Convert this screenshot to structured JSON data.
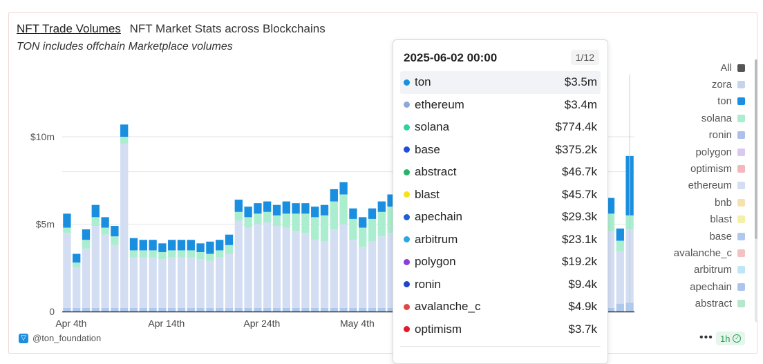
{
  "header": {
    "title": "NFT Trade Volumes",
    "subtitle": "NFT Market Stats across Blockchains",
    "note": "TON includes offchain Marketplace volumes"
  },
  "chart_data": {
    "type": "bar",
    "stacked": true,
    "grid": true,
    "ylim": [
      0,
      10000000
    ],
    "yticks": [
      {
        "value": 0,
        "label": "0"
      },
      {
        "value": 5000000,
        "label": "$5m"
      },
      {
        "value": 10000000,
        "label": "$10m"
      }
    ],
    "xticks": [
      {
        "index": 0,
        "label": "Apr 4th"
      },
      {
        "index": 10,
        "label": "Apr 14th"
      },
      {
        "index": 20,
        "label": "Apr 24th"
      },
      {
        "index": 30,
        "label": "May 4th"
      }
    ],
    "n_bars": 60,
    "series": [
      {
        "name": "base",
        "color": "#aec8ee",
        "values": [
          0.2,
          0.2,
          0.2,
          0.2,
          0.2,
          0.2,
          0.2,
          0.2,
          0.2,
          0.2,
          0.2,
          0.2,
          0.2,
          0.2,
          0.2,
          0.2,
          0.2,
          0.2,
          0.2,
          0.2,
          0.2,
          0.2,
          0.2,
          0.2,
          0.2,
          0.2,
          0.2,
          0.2,
          0.2,
          0.2,
          0.2,
          0.2,
          0.2,
          0.2,
          0.2,
          0.2,
          0.2,
          0.2,
          0.2,
          0.2,
          0.2,
          0.2,
          0.2,
          0.2,
          0.2,
          0.2,
          0.2,
          0.2,
          0.2,
          0.2,
          0.2,
          0.2,
          0.2,
          0.2,
          0.2,
          0.2,
          0.2,
          0.2,
          0.45,
          0.5
        ]
      },
      {
        "name": "ethereum",
        "color": "#d4def3",
        "values": [
          4.3,
          2.3,
          3.4,
          4.7,
          4.2,
          3.6,
          9.4,
          2.9,
          2.9,
          2.9,
          2.8,
          2.9,
          2.9,
          2.9,
          2.8,
          2.7,
          2.9,
          3.1,
          5.0,
          4.6,
          4.8,
          4.9,
          4.7,
          4.6,
          4.4,
          4.3,
          3.9,
          3.8,
          4.5,
          4.8,
          3.9,
          3.5,
          3.8,
          4.1,
          4.3,
          4.5,
          5.6,
          4.4,
          4.5,
          4.3,
          4.0,
          4.1,
          4.3,
          4.2,
          4.4,
          4.6,
          4.4,
          4.5,
          4.8,
          4.5,
          4.3,
          4.3,
          4.1,
          4.2,
          4.4,
          4.3,
          4.6,
          4.4,
          3.0,
          4.2
        ]
      },
      {
        "name": "solana",
        "color": "#abeecf",
        "values": [
          0.3,
          0.3,
          0.5,
          0.5,
          0.4,
          0.5,
          0.4,
          0.4,
          0.4,
          0.4,
          0.4,
          0.4,
          0.4,
          0.4,
          0.4,
          0.4,
          0.4,
          0.5,
          0.5,
          0.6,
          0.6,
          0.6,
          0.6,
          0.8,
          1.0,
          1.1,
          1.3,
          1.5,
          1.6,
          1.7,
          1.2,
          1.1,
          1.3,
          1.4,
          1.5,
          1.6,
          1.7,
          1.5,
          1.4,
          1.3,
          1.2,
          1.1,
          1.2,
          1.3,
          1.4,
          1.5,
          1.6,
          1.4,
          1.3,
          1.2,
          1.1,
          1.0,
          1.2,
          1.3,
          1.4,
          1.2,
          1.1,
          1.0,
          0.6,
          0.8
        ]
      },
      {
        "name": "ton",
        "color": "#1a8fe0",
        "values": [
          0.8,
          0.5,
          0.6,
          0.7,
          0.6,
          0.6,
          0.7,
          0.7,
          0.6,
          0.6,
          0.5,
          0.6,
          0.6,
          0.6,
          0.5,
          0.7,
          0.6,
          0.6,
          0.7,
          0.6,
          0.6,
          0.6,
          0.6,
          0.7,
          0.6,
          0.6,
          0.6,
          0.6,
          0.7,
          0.7,
          0.6,
          0.6,
          0.6,
          0.6,
          0.7,
          0.8,
          0.9,
          0.8,
          0.7,
          0.7,
          0.6,
          0.6,
          0.7,
          0.7,
          0.7,
          0.8,
          0.8,
          0.7,
          0.7,
          0.6,
          0.6,
          0.6,
          0.7,
          0.7,
          0.8,
          0.7,
          0.6,
          0.9,
          0.7,
          3.4
        ]
      }
    ],
    "value_unit": "millions USD",
    "highlight_index": 49
  },
  "legend": {
    "items": [
      {
        "name": "All",
        "color": "#555555"
      },
      {
        "name": "zora",
        "color": "#c6d3ec"
      },
      {
        "name": "ton",
        "color": "#1a8fe0"
      },
      {
        "name": "solana",
        "color": "#abeecf"
      },
      {
        "name": "ronin",
        "color": "#aebfe8"
      },
      {
        "name": "polygon",
        "color": "#d9c8f0"
      },
      {
        "name": "optimism",
        "color": "#f2b8bc"
      },
      {
        "name": "ethereum",
        "color": "#d4def3"
      },
      {
        "name": "bnb",
        "color": "#f6e2ae"
      },
      {
        "name": "blast",
        "color": "#f5f0a8"
      },
      {
        "name": "base",
        "color": "#aec8ee"
      },
      {
        "name": "avalanche_c",
        "color": "#f2c2c2"
      },
      {
        "name": "arbitrum",
        "color": "#bfe6f5"
      },
      {
        "name": "apechain",
        "color": "#aec4ee"
      },
      {
        "name": "abstract",
        "color": "#b6e6cc"
      }
    ]
  },
  "tooltip": {
    "date": "2025-06-02 00:00",
    "page": "1/12",
    "rows": [
      {
        "name": "ton",
        "value": "$3.5m",
        "color": "#1a8fe0"
      },
      {
        "name": "ethereum",
        "value": "$3.4m",
        "color": "#8fa8dc"
      },
      {
        "name": "solana",
        "value": "$774.4k",
        "color": "#2ed39a"
      },
      {
        "name": "base",
        "value": "$375.2k",
        "color": "#1f4fd8"
      },
      {
        "name": "abstract",
        "value": "$46.7k",
        "color": "#27b36a"
      },
      {
        "name": "blast",
        "value": "$45.7k",
        "color": "#f3e21a"
      },
      {
        "name": "apechain",
        "value": "$29.3k",
        "color": "#1f5fd0"
      },
      {
        "name": "arbitrum",
        "value": "$23.1k",
        "color": "#28a8e0"
      },
      {
        "name": "polygon",
        "value": "$19.2k",
        "color": "#8a3fd8"
      },
      {
        "name": "ronin",
        "value": "$9.4k",
        "color": "#1f46c8"
      },
      {
        "name": "avalanche_c",
        "value": "$4.9k",
        "color": "#e04848"
      },
      {
        "name": "optimism",
        "value": "$3.7k",
        "color": "#e01a2a"
      }
    ]
  },
  "footer": {
    "brand": "@ton_foundation",
    "more": "•••",
    "refresh": "1h"
  }
}
